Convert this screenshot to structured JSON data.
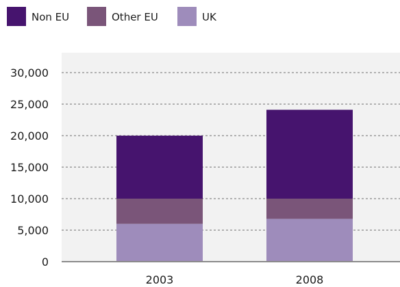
{
  "chart_data": {
    "type": "bar",
    "stacked": true,
    "categories": [
      "2003",
      "2008"
    ],
    "series": [
      {
        "name": "UK",
        "values": [
          6000,
          6800
        ],
        "color": "#9e8cbb"
      },
      {
        "name": "Other EU",
        "values": [
          4000,
          3200
        ],
        "color": "#7a5579"
      },
      {
        "name": "Non EU",
        "values": [
          10000,
          14100
        ],
        "color": "#46146e"
      }
    ],
    "legend_order": [
      "Non EU",
      "Other EU",
      "UK"
    ],
    "legend_position": "top-left",
    "y_ticks": [
      "0",
      "5,000",
      "10,000",
      "15,000",
      "20,000",
      "25,000",
      "30,000"
    ],
    "ylim": [
      0,
      30000
    ],
    "grid": true,
    "plot_background": "#f2f2f2"
  }
}
